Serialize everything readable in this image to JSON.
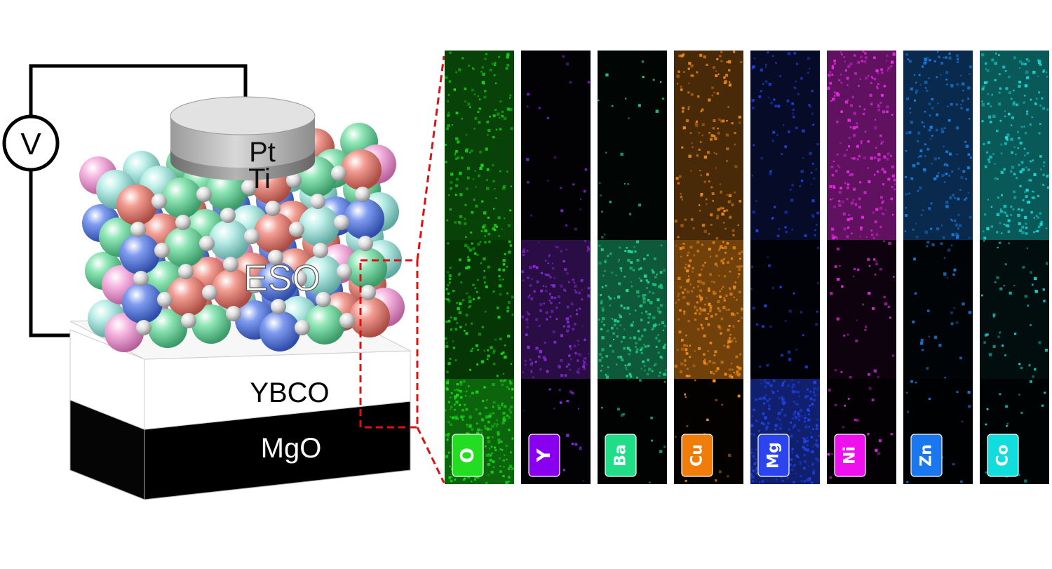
{
  "device": {
    "voltmeter_symbol": "V",
    "layers": {
      "top_electrode": "Pt",
      "adhesion_layer": "Ti",
      "film": "ESO",
      "bottom_electrode": "YBCO",
      "substrate": "MgO"
    }
  },
  "eds_maps": [
    {
      "element": "O",
      "color": "#19d919",
      "tag_color": "#22dd22"
    },
    {
      "element": "Y",
      "color": "#8a2be2",
      "tag_color": "#8800ee"
    },
    {
      "element": "Ba",
      "color": "#21d98a",
      "tag_color": "#22dd88"
    },
    {
      "element": "Cu",
      "color": "#f28c1a",
      "tag_color": "#f07d0a"
    },
    {
      "element": "Mg",
      "color": "#2244ee",
      "tag_color": "#2b44ee"
    },
    {
      "element": "Ni",
      "color": "#e82be8",
      "tag_color": "#ee11ee"
    },
    {
      "element": "Zn",
      "color": "#1a7fe8",
      "tag_color": "#1a77ee"
    },
    {
      "element": "Co",
      "color": "#19d9d9",
      "tag_color": "#11dddd"
    }
  ],
  "colors": {
    "zoom_box": "#e01010",
    "wire": "#000000",
    "atom_palette": [
      "#f3a3d8",
      "#7fdca8",
      "#f08a80",
      "#6f8de8",
      "#a8e6e0",
      "#dddddd"
    ]
  }
}
